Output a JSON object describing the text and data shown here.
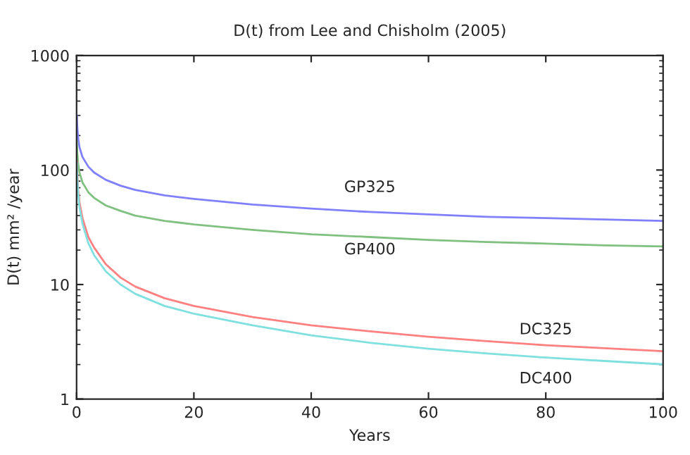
{
  "chart_data": {
    "type": "line",
    "title": "D(t) from Lee and Chisholm (2005)",
    "xlabel": "Years",
    "ylabel": "D(t) mm² /year",
    "x": [
      0.05,
      0.1,
      0.25,
      0.5,
      1,
      2,
      3,
      5,
      7.5,
      10,
      15,
      20,
      30,
      40,
      50,
      60,
      70,
      80,
      90,
      100
    ],
    "series": [
      {
        "name": "GP325",
        "color": "#8080ff",
        "values": [
          300,
          248,
          192,
          158,
          130,
          107,
          95,
          82,
          73,
          67,
          60,
          56,
          50,
          46,
          43,
          41,
          39,
          38,
          37,
          36
        ]
      },
      {
        "name": "GP400",
        "color": "#80c080",
        "values": [
          180,
          149,
          115,
          95,
          78,
          64,
          57,
          49,
          44,
          40,
          36,
          33.5,
          30,
          27.5,
          26,
          24.5,
          23.5,
          22.8,
          22,
          21.5
        ]
      },
      {
        "name": "DC325",
        "color": "#ff8080",
        "values": [
          120,
          null,
          68,
          52,
          38,
          26,
          21,
          15,
          11.5,
          9.6,
          7.6,
          6.5,
          5.2,
          4.4,
          3.9,
          3.5,
          3.2,
          2.95,
          2.78,
          2.62
        ]
      },
      {
        "name": "DC400",
        "color": "#80e0e0",
        "values": [
          115,
          90,
          63,
          47,
          34,
          23,
          18,
          13,
          10,
          8.3,
          6.5,
          5.57,
          4.4,
          3.6,
          3.1,
          2.75,
          2.5,
          2.3,
          2.15,
          2.01
        ]
      }
    ],
    "log": "y",
    "xlim": [
      0,
      100
    ],
    "xticks": [
      0,
      20,
      40,
      60,
      80,
      100
    ],
    "ylim": [
      1,
      1000
    ],
    "yticks": [
      1,
      10,
      100,
      1000
    ],
    "grid": false,
    "legend": false,
    "marker": "none",
    "line_style": "solid"
  }
}
